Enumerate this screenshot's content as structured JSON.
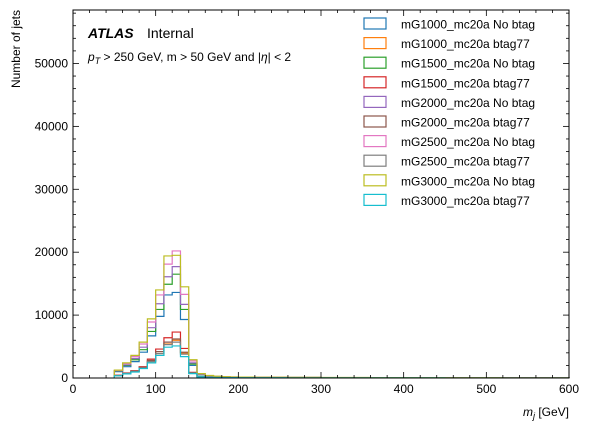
{
  "chart_data": {
    "type": "histogram-step",
    "annotation": {
      "atlas": "ATLAS",
      "status": "Internal",
      "cuts": "p_T > 250 GeV, m > 50 GeV and |η| < 2"
    },
    "xlabel": "m_j [GeV]",
    "ylabel": "Number of jets",
    "xlim": [
      0,
      600
    ],
    "ylim": [
      0,
      58500
    ],
    "xticks": [
      0,
      100,
      200,
      300,
      400,
      500,
      600
    ],
    "yticks": [
      0,
      10000,
      20000,
      30000,
      40000,
      50000
    ],
    "legend_position": "top-right",
    "bin_edges": [
      50,
      60,
      70,
      80,
      90,
      100,
      110,
      120,
      130,
      140,
      150,
      160,
      170,
      180,
      190,
      200,
      220,
      260,
      300,
      360,
      450,
      520,
      600
    ],
    "series": [
      {
        "name": "mG1000_mc20a No btag",
        "color": "#1f77b4",
        "values": [
          1000,
          1800,
          2600,
          4100,
          6700,
          9800,
          13200,
          13600,
          9300,
          2000,
          500,
          300,
          200,
          160,
          130,
          110,
          90,
          70,
          50,
          40,
          30,
          20
        ]
      },
      {
        "name": "mG1000_mc20a btag77",
        "color": "#ff7f0e",
        "values": [
          400,
          700,
          1000,
          1600,
          2600,
          3900,
          5400,
          6000,
          4000,
          800,
          200,
          120,
          90,
          70,
          60,
          50,
          40,
          30,
          25,
          20,
          15,
          10
        ]
      },
      {
        "name": "mG1500_mc20a No btag",
        "color": "#2ca02c",
        "values": [
          1100,
          2000,
          2900,
          4500,
          7400,
          10900,
          14900,
          16500,
          10900,
          2200,
          550,
          330,
          220,
          180,
          140,
          120,
          100,
          80,
          60,
          45,
          30,
          20
        ]
      },
      {
        "name": "mG1500_mc20a btag77",
        "color": "#d62728",
        "values": [
          450,
          800,
          1150,
          1800,
          3000,
          4600,
          6400,
          7300,
          4700,
          900,
          230,
          140,
          100,
          80,
          65,
          55,
          45,
          35,
          28,
          22,
          16,
          10
        ]
      },
      {
        "name": "mG2000_mc20a No btag",
        "color": "#9467bd",
        "values": [
          1150,
          2100,
          3100,
          4900,
          8000,
          11800,
          16100,
          17700,
          11700,
          2400,
          600,
          350,
          240,
          190,
          150,
          130,
          110,
          85,
          65,
          50,
          35,
          22
        ]
      },
      {
        "name": "mG2000_mc20a btag77",
        "color": "#8c564b",
        "values": [
          400,
          750,
          1100,
          1700,
          2800,
          4200,
          5700,
          6200,
          4100,
          850,
          210,
          130,
          95,
          75,
          60,
          50,
          42,
          32,
          26,
          20,
          14,
          9
        ]
      },
      {
        "name": "mG2500_mc20a No btag",
        "color": "#e377c2",
        "values": [
          1200,
          2300,
          3400,
          5400,
          8900,
          13200,
          18100,
          20200,
          13300,
          2700,
          650,
          380,
          260,
          200,
          160,
          140,
          120,
          90,
          70,
          55,
          38,
          24
        ]
      },
      {
        "name": "mG2500_mc20a btag77",
        "color": "#7f7f7f",
        "values": [
          380,
          700,
          1000,
          1600,
          2600,
          3900,
          5300,
          5700,
          3800,
          780,
          200,
          120,
          90,
          70,
          58,
          48,
          40,
          30,
          24,
          18,
          13,
          8
        ]
      },
      {
        "name": "mG3000_mc20a No btag",
        "color": "#bcbd22",
        "values": [
          1250,
          2400,
          3600,
          5700,
          9400,
          14000,
          19400,
          19500,
          14500,
          2900,
          700,
          400,
          280,
          210,
          170,
          150,
          125,
          95,
          75,
          58,
          40,
          26
        ]
      },
      {
        "name": "mG3000_mc20a btag77",
        "color": "#17becf",
        "values": [
          350,
          650,
          950,
          1500,
          2400,
          3600,
          4900,
          5100,
          3400,
          700,
          180,
          110,
          85,
          65,
          55,
          45,
          38,
          28,
          22,
          17,
          12,
          8
        ]
      }
    ]
  }
}
